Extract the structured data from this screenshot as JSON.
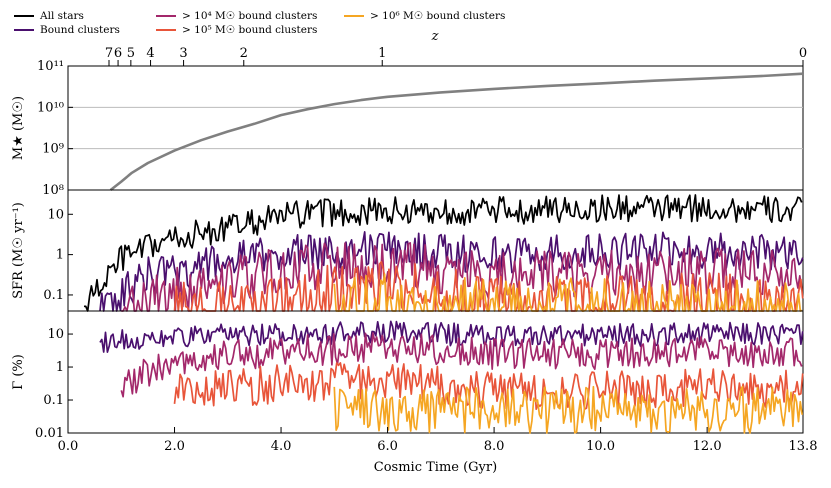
{
  "legend": [
    {
      "label": "All stars",
      "color": "#000000"
    },
    {
      "label": "Bound clusters",
      "color": "#4a0f6e"
    },
    {
      "label": "> 10⁴ M☉ bound clusters",
      "color": "#a3286b"
    },
    {
      "label": "> 10⁵ M☉ bound clusters",
      "color": "#e8553a"
    },
    {
      "label": "> 10⁶ M☉ bound clusters",
      "color": "#f5a623"
    }
  ],
  "chart_data": [
    {
      "panel": "stellar-mass",
      "type": "line",
      "ylabel": "M★ (M☉)",
      "yscale": "log",
      "ylim": [
        100000000.0,
        100000000000.0
      ],
      "yticks": [
        "10⁸",
        "10⁹",
        "10¹⁰",
        "10¹¹"
      ],
      "grid": "horizontal",
      "top_axis": {
        "label": "z",
        "ticks": [
          "7",
          "6",
          "5",
          "4",
          "3",
          "2",
          "1",
          "0"
        ],
        "tick_times": [
          0.77,
          0.94,
          1.18,
          1.55,
          2.17,
          3.3,
          5.9,
          13.8
        ]
      },
      "series": [
        {
          "name": "All stars (stellar mass)",
          "color": "#808080",
          "x": [
            0.8,
            1.0,
            1.2,
            1.5,
            2.0,
            2.5,
            3.0,
            3.5,
            4.0,
            4.5,
            5.0,
            5.5,
            6.0,
            7.0,
            8.0,
            9.0,
            10.0,
            11.0,
            12.0,
            13.0,
            13.8
          ],
          "y": [
            100000000.0,
            160000000.0,
            260000000.0,
            450000000.0,
            900000000.0,
            1600000000.0,
            2600000000.0,
            4000000000.0,
            6500000000.0,
            9000000000.0,
            12000000000.0,
            15000000000.0,
            18000000000.0,
            23000000000.0,
            28000000000.0,
            33000000000.0,
            38000000000.0,
            44000000000.0,
            50000000000.0,
            57000000000.0,
            65000000000.0
          ]
        }
      ]
    },
    {
      "panel": "sfr",
      "type": "line",
      "ylabel": "SFR (M☉ yr⁻¹)",
      "yscale": "log",
      "ylim": [
        0.04,
        40
      ],
      "yticks": [
        "0.1",
        "1",
        "10"
      ],
      "series": [
        {
          "name": "All stars",
          "color": "#000000",
          "start": 0.3,
          "base": [
            [
              0.3,
              0.05
            ],
            [
              1.0,
              0.8
            ],
            [
              2.0,
              2.5
            ],
            [
              3.0,
              4.5
            ],
            [
              4.0,
              9.0
            ],
            [
              5.0,
              11.0
            ],
            [
              6.0,
              12.0
            ],
            [
              8.0,
              12.0
            ],
            [
              10.0,
              14.0
            ],
            [
              12.0,
              14.0
            ],
            [
              13.8,
              12.0
            ]
          ]
        },
        {
          "name": "Bound clusters",
          "color": "#4a0f6e",
          "start": 0.6,
          "base": [
            [
              0.6,
              0.04
            ],
            [
              1.5,
              0.3
            ],
            [
              2.5,
              0.5
            ],
            [
              3.5,
              0.9
            ],
            [
              5.0,
              1.3
            ],
            [
              6.0,
              1.4
            ],
            [
              8.0,
              1.0
            ],
            [
              10.0,
              1.2
            ],
            [
              12.0,
              1.3
            ],
            [
              13.8,
              1.2
            ]
          ]
        },
        {
          "name": "> 10⁴ M☉ bound clusters",
          "color": "#a3286b",
          "start": 1.0,
          "base": [
            [
              1.0,
              0.04
            ],
            [
              2.0,
              0.12
            ],
            [
              3.0,
              0.25
            ],
            [
              5.0,
              0.6
            ],
            [
              6.0,
              0.6
            ],
            [
              8.0,
              0.3
            ],
            [
              10.0,
              0.35
            ],
            [
              12.0,
              0.4
            ],
            [
              13.8,
              0.3
            ]
          ]
        },
        {
          "name": "> 10⁵ M☉ bound clusters",
          "color": "#e8553a",
          "start": 2.0,
          "base": [
            [
              2.0,
              0.04
            ],
            [
              4.0,
              0.06
            ],
            [
              5.0,
              0.12
            ],
            [
              6.0,
              0.15
            ],
            [
              8.0,
              0.06
            ],
            [
              10.0,
              0.06
            ],
            [
              12.0,
              0.07
            ],
            [
              13.8,
              0.06
            ]
          ]
        },
        {
          "name": "> 10⁶ M☉ bound clusters",
          "color": "#f5a623",
          "start": 5.0,
          "base": [
            [
              5.0,
              0.04
            ],
            [
              6.0,
              0.05
            ],
            [
              7.0,
              0.05
            ],
            [
              8.0,
              0.04
            ],
            [
              13.8,
              0.04
            ]
          ]
        }
      ]
    },
    {
      "panel": "gamma",
      "type": "line",
      "ylabel": "Γ (%)",
      "yscale": "log",
      "ylim": [
        0.01,
        50
      ],
      "yticks": [
        "0.01",
        "0.1",
        "1",
        "10"
      ],
      "series": [
        {
          "name": "Bound clusters",
          "color": "#4a0f6e",
          "start": 0.6,
          "base": [
            [
              0.6,
              6.0
            ],
            [
              2.0,
              8.0
            ],
            [
              4.0,
              10.0
            ],
            [
              6.0,
              11.0
            ],
            [
              8.0,
              9.0
            ],
            [
              10.0,
              9.0
            ],
            [
              12.0,
              10.0
            ],
            [
              13.8,
              10.0
            ]
          ]
        },
        {
          "name": "> 10⁴ M☉ bound clusters",
          "color": "#a3286b",
          "start": 1.0,
          "base": [
            [
              1.0,
              0.3
            ],
            [
              2.0,
              1.5
            ],
            [
              4.0,
              3.0
            ],
            [
              6.0,
              4.0
            ],
            [
              8.0,
              2.5
            ],
            [
              10.0,
              2.5
            ],
            [
              12.0,
              3.0
            ],
            [
              13.8,
              2.5
            ]
          ]
        },
        {
          "name": "> 10⁵ M☉ bound clusters",
          "color": "#e8553a",
          "start": 2.0,
          "base": [
            [
              2.0,
              0.2
            ],
            [
              4.0,
              0.3
            ],
            [
              6.0,
              0.4
            ],
            [
              8.0,
              0.2
            ],
            [
              10.0,
              0.2
            ],
            [
              12.0,
              0.25
            ],
            [
              13.8,
              0.2
            ]
          ]
        },
        {
          "name": "> 10⁶ M☉ bound clusters",
          "color": "#f5a623",
          "start": 5.0,
          "base": [
            [
              5.0,
              0.05
            ],
            [
              13.8,
              0.05
            ]
          ]
        }
      ]
    }
  ],
  "x_axis": {
    "label": "Cosmic Time (Gyr)",
    "xlim": [
      0.0,
      13.8
    ],
    "ticks": [
      "0.0",
      "2.0",
      "4.0",
      "6.0",
      "8.0",
      "10.0",
      "12.0",
      "13.8"
    ],
    "tick_values": [
      0.0,
      2.0,
      4.0,
      6.0,
      8.0,
      10.0,
      12.0,
      13.8
    ]
  }
}
